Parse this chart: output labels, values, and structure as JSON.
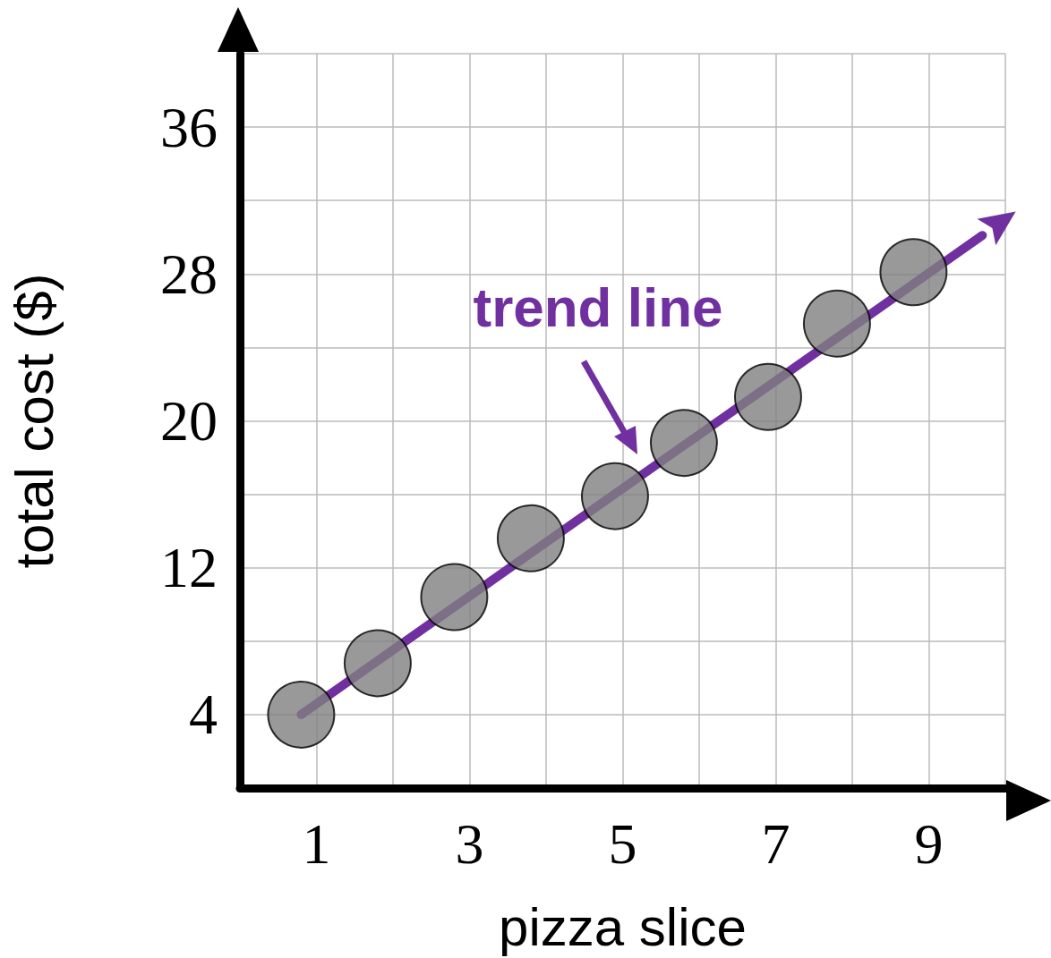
{
  "chart_data": {
    "type": "scatter",
    "xlabel": "pizza slice",
    "ylabel": "total cost ($)",
    "xlim": [
      0,
      10
    ],
    "ylim": [
      0,
      40
    ],
    "xticks": [
      {
        "value": 0,
        "label": null
      },
      1,
      {
        "value": 2,
        "label": null
      },
      3,
      {
        "value": 4,
        "label": null
      },
      5,
      {
        "value": 6,
        "label": null
      },
      7,
      {
        "value": 8,
        "label": null
      },
      9,
      {
        "value": 10,
        "label": null
      }
    ],
    "yticks": [
      {
        "value": 0,
        "label": null
      },
      4,
      {
        "value": 8,
        "label": null
      },
      12,
      {
        "value": 16,
        "label": null
      },
      20,
      {
        "value": 24,
        "label": null
      },
      28,
      {
        "value": 32,
        "label": null
      },
      36,
      {
        "value": 40,
        "label": null
      }
    ],
    "grid": true,
    "series": [
      {
        "type": "line",
        "color": "#7030a0",
        "line_style": "solid",
        "marker": "none",
        "x": [
          0.8,
          9.7
        ],
        "values": [
          4,
          30.1
        ]
      },
      {
        "color": "#808080",
        "marker": "circle",
        "x": [
          0.8,
          1.8,
          2.8,
          3.8,
          4.9,
          5.8,
          6.9,
          7.8,
          8.8
        ],
        "values": [
          4,
          6.8,
          10.4,
          13.6,
          15.9,
          18.8,
          21.3,
          25.3,
          28.1
        ]
      }
    ],
    "annotations": [
      "trend line"
    ]
  }
}
